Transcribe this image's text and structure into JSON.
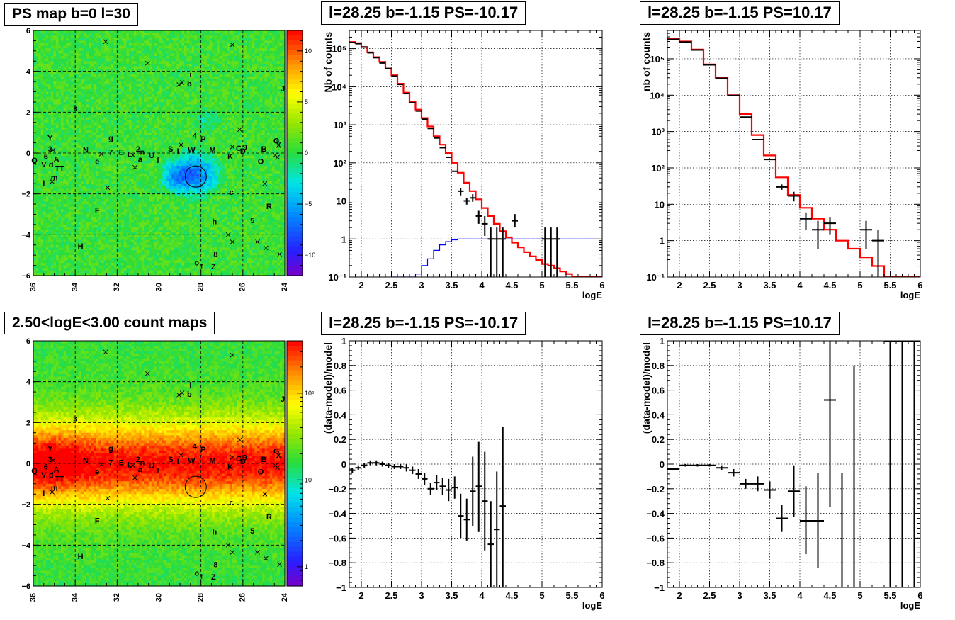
{
  "chart_data": [
    {
      "type": "heatmap",
      "title": "PS map b=0 l=30",
      "x_ticks": [
        "36",
        "34",
        "32",
        "30",
        "28",
        "26",
        "24"
      ],
      "y_ticks": [
        "6",
        "4",
        "2",
        "0",
        "−2",
        "−4",
        "−6"
      ],
      "xlim": [
        36,
        24
      ],
      "ylim": [
        -6,
        6
      ],
      "colorscale": {
        "ticks": [
          "10",
          "5",
          "0",
          "−5",
          "−10"
        ],
        "range": [
          -12,
          12
        ]
      },
      "circle": {
        "l": 28.25,
        "b": -1.15
      },
      "grid": true
    },
    {
      "type": "heatmap",
      "title": "2.50<logE<3.00 count maps",
      "x_ticks": [
        "36",
        "34",
        "32",
        "30",
        "28",
        "26",
        "24"
      ],
      "y_ticks": [
        "6",
        "4",
        "2",
        "0",
        "−2",
        "−4",
        "−6"
      ],
      "xlim": [
        36,
        24
      ],
      "ylim": [
        -6,
        6
      ],
      "colorscale": {
        "ticks": [
          "10²",
          "10",
          "1"
        ],
        "scale": "log",
        "range": [
          0.6,
          400
        ]
      },
      "circle": {
        "l": 28.25,
        "b": -1.15
      },
      "grid": true
    },
    {
      "type": "line",
      "title": "l=28.25 b=-1.15 PS=-10.17",
      "xlabel": "logE",
      "ylabel": "Nb of counts",
      "x_ticks": [
        "2",
        "2.5",
        "3",
        "3.5",
        "4",
        "4.5",
        "5",
        "5.5",
        "6"
      ],
      "xlim": [
        1.8,
        6
      ],
      "ylog": true,
      "y_ticks": [
        "10⁵",
        "10⁴",
        "10³",
        "10²",
        "10",
        "1",
        "10⁻¹"
      ],
      "ylim": [
        0.1,
        300000
      ],
      "grid": true,
      "series": [
        {
          "color": "#ff0000",
          "style": "step",
          "bin_width": 0.1,
          "x": [
            1.8,
            1.9,
            2.0,
            2.1,
            2.2,
            2.3,
            2.4,
            2.5,
            2.6,
            2.7,
            2.8,
            2.9,
            3.0,
            3.1,
            3.2,
            3.3,
            3.4,
            3.5,
            3.6,
            3.7,
            3.8,
            3.9,
            4.0,
            4.1,
            4.2,
            4.3,
            4.4,
            4.5,
            4.6,
            4.7,
            4.8,
            4.9,
            5.0,
            5.1,
            5.2,
            5.3,
            5.4,
            5.5,
            5.6,
            5.7,
            5.8,
            5.9
          ],
          "y": [
            150000,
            140000,
            110000,
            80000,
            60000,
            45000,
            30000,
            20000,
            12000,
            7000,
            4000,
            2500,
            1500,
            900,
            500,
            300,
            180,
            100,
            55,
            30,
            18,
            11,
            6.5,
            4,
            2.5,
            1.6,
            1.1,
            0.8,
            0.6,
            0.45,
            0.35,
            0.28,
            0.22,
            0.2,
            0.17,
            0.14,
            0.12,
            0.1,
            0.1,
            0.1,
            0.1,
            0.1
          ]
        },
        {
          "color": "#0000ff",
          "style": "step",
          "bin_width": 0.1,
          "x": [
            2.5,
            2.6,
            2.7,
            2.8,
            2.9,
            3.0,
            3.1,
            3.2,
            3.3,
            3.4,
            3.5,
            3.6,
            3.7,
            3.8,
            3.9,
            4.0,
            4.2,
            4.4,
            4.6,
            4.8,
            5.0,
            5.2,
            5.4,
            5.6,
            5.8
          ],
          "y": [
            0.1,
            0.1,
            0.1,
            0.1,
            0.12,
            0.2,
            0.3,
            0.5,
            0.7,
            0.85,
            0.95,
            1,
            1,
            1,
            1,
            1,
            1,
            1,
            1,
            1,
            1,
            1,
            1,
            1,
            1
          ]
        },
        {
          "color": "#000000",
          "style": "errorbar",
          "xerr": 0.05,
          "x": [
            1.85,
            1.95,
            2.05,
            2.15,
            2.25,
            2.35,
            2.45,
            2.55,
            2.65,
            2.75,
            2.85,
            2.95,
            3.05,
            3.15,
            3.25,
            3.35,
            3.45,
            3.55,
            3.65,
            3.75,
            3.85,
            3.95,
            4.05,
            4.15,
            4.25,
            4.35,
            4.55,
            5.05,
            5.15,
            5.25
          ],
          "y": [
            145000,
            135000,
            110000,
            78000,
            58000,
            42000,
            30000,
            19000,
            11500,
            6600,
            3800,
            2300,
            1400,
            800,
            450,
            250,
            140,
            60,
            18,
            10,
            12,
            4,
            2.5,
            1,
            1,
            1,
            3,
            1,
            1,
            1
          ],
          "ylo": [
            145000,
            135000,
            110000,
            78000,
            58000,
            42000,
            30000,
            19000,
            11500,
            6600,
            3800,
            2300,
            1400,
            800,
            450,
            250,
            140,
            60,
            14,
            8,
            9.5,
            2.5,
            1.2,
            0.1,
            0.1,
            0.1,
            2,
            0.1,
            0.1,
            0.1
          ],
          "yhi": [
            145000,
            135000,
            110000,
            78000,
            58000,
            42000,
            30000,
            19000,
            11500,
            6600,
            3800,
            2300,
            1400,
            800,
            450,
            250,
            140,
            60,
            22,
            12,
            15,
            5.5,
            4,
            2,
            2,
            2,
            4.5,
            2,
            2,
            2
          ]
        }
      ]
    },
    {
      "type": "line",
      "title": "l=28.25 b=-1.15 PS=10.17",
      "xlabel": "logE",
      "ylabel": "nb of counts",
      "x_ticks": [
        "2",
        "2.5",
        "3",
        "3.5",
        "4",
        "4.5",
        "5",
        "5.5",
        "6"
      ],
      "xlim": [
        1.8,
        6
      ],
      "ylog": true,
      "y_ticks": [
        "10⁵",
        "10⁴",
        "10³",
        "10²",
        "10",
        "1",
        "10⁻¹"
      ],
      "ylim": [
        0.1,
        600000
      ],
      "grid": true,
      "series": [
        {
          "color": "#ff0000",
          "style": "step",
          "bin_width": 0.2,
          "x": [
            1.8,
            2.0,
            2.2,
            2.4,
            2.6,
            2.8,
            3.0,
            3.2,
            3.4,
            3.6,
            3.8,
            4.0,
            4.2,
            4.4,
            4.6,
            4.8,
            5.0,
            5.2,
            5.4,
            5.6,
            5.8
          ],
          "y": [
            350000,
            300000,
            180000,
            70000,
            30000,
            10000,
            3000,
            800,
            220,
            55,
            18,
            8,
            4,
            2,
            1,
            0.6,
            0.35,
            0.2,
            0.1,
            0.1,
            0.1
          ]
        },
        {
          "color": "#000000",
          "style": "errorbar",
          "xerr": 0.1,
          "x": [
            1.9,
            2.1,
            2.3,
            2.5,
            2.7,
            2.9,
            3.1,
            3.3,
            3.5,
            3.7,
            3.9,
            4.1,
            4.3,
            4.5,
            5.1,
            5.3
          ],
          "y": [
            340000,
            290000,
            175000,
            68000,
            29000,
            9800,
            2500,
            600,
            170,
            30,
            17,
            4,
            2,
            3,
            2,
            1
          ],
          "ylo": [
            340000,
            290000,
            175000,
            68000,
            29000,
            9800,
            2500,
            600,
            170,
            25,
            12,
            2,
            0.6,
            1.5,
            0.6,
            0.1
          ],
          "yhi": [
            340000,
            290000,
            175000,
            68000,
            29000,
            9800,
            2500,
            600,
            170,
            35,
            22,
            6,
            3.5,
            4.5,
            3.5,
            2
          ]
        }
      ]
    },
    {
      "type": "scatter",
      "title": "l=28.25 b=-1.15 PS=-10.17",
      "xlabel": "logE",
      "ylabel": "(data-model)/model",
      "x_ticks": [
        "2",
        "2.5",
        "3",
        "3.5",
        "4",
        "4.5",
        "5",
        "5.5",
        "6"
      ],
      "xlim": [
        1.8,
        6
      ],
      "y_ticks": [
        "1",
        "0.8",
        "0.6",
        "0.4",
        "0.2",
        "0",
        "−0.2",
        "−0.4",
        "−0.6",
        "−0.8",
        "−1"
      ],
      "ylim": [
        -1,
        1
      ],
      "grid": true,
      "series": [
        {
          "color": "#000000",
          "style": "errorbar",
          "xerr": 0.05,
          "x": [
            1.85,
            1.95,
            2.05,
            2.15,
            2.25,
            2.35,
            2.45,
            2.55,
            2.65,
            2.75,
            2.85,
            2.95,
            3.05,
            3.15,
            3.25,
            3.35,
            3.45,
            3.55,
            3.65,
            3.75,
            3.85,
            3.95,
            4.05,
            4.15,
            4.25,
            4.35
          ],
          "y": [
            -0.05,
            -0.03,
            -0.01,
            0.01,
            0.01,
            0.0,
            -0.01,
            -0.02,
            -0.02,
            -0.03,
            -0.05,
            -0.08,
            -0.12,
            -0.2,
            -0.15,
            -0.18,
            -0.21,
            -0.19,
            -0.42,
            -0.45,
            -0.22,
            -0.18,
            -0.3,
            -0.65,
            -0.53,
            -0.34
          ],
          "ylo": [
            -0.07,
            -0.05,
            -0.03,
            -0.01,
            -0.01,
            -0.02,
            -0.03,
            -0.04,
            -0.04,
            -0.06,
            -0.08,
            -0.12,
            -0.17,
            -0.25,
            -0.21,
            -0.25,
            -0.3,
            -0.28,
            -0.6,
            -0.62,
            -0.5,
            -0.55,
            -0.7,
            -1.0,
            -1.0,
            -1.0
          ],
          "yhi": [
            -0.03,
            -0.01,
            0.01,
            0.03,
            0.03,
            0.02,
            0.01,
            0.0,
            0.0,
            0.0,
            -0.02,
            -0.04,
            -0.07,
            -0.15,
            -0.09,
            -0.11,
            -0.12,
            -0.1,
            -0.24,
            -0.28,
            0.06,
            0.18,
            0.1,
            -0.3,
            -0.06,
            0.3
          ]
        }
      ]
    },
    {
      "type": "scatter",
      "title": "l=28.25 b=-1.15 PS=10.17",
      "xlabel": "logE",
      "ylabel": "(data-model)/model",
      "x_ticks": [
        "2",
        "2.5",
        "3",
        "3.5",
        "4",
        "4.5",
        "5",
        "5.5",
        "6"
      ],
      "xlim": [
        1.8,
        6
      ],
      "y_ticks": [
        "1",
        "0.8",
        "0.6",
        "0.4",
        "0.2",
        "0",
        "−0.2",
        "−0.4",
        "−0.6",
        "−0.8",
        "−1"
      ],
      "ylim": [
        -1,
        1
      ],
      "grid": true,
      "series": [
        {
          "color": "#000000",
          "style": "errorbar",
          "xerr": 0.1,
          "x": [
            1.9,
            2.1,
            2.3,
            2.5,
            2.7,
            2.9,
            3.1,
            3.3,
            3.5,
            3.7,
            3.9,
            4.1,
            4.3,
            4.5,
            4.7,
            4.9,
            5.5,
            5.7,
            5.9
          ],
          "y": [
            -0.04,
            -0.01,
            -0.01,
            -0.01,
            -0.03,
            -0.07,
            -0.16,
            -0.16,
            -0.21,
            -0.44,
            -0.22,
            -0.46,
            -0.46,
            0.52,
            -1.0,
            -1.0,
            1.0,
            1.0,
            1.0
          ],
          "ylo": [
            -0.05,
            -0.02,
            -0.02,
            -0.02,
            -0.05,
            -0.1,
            -0.2,
            -0.22,
            -0.28,
            -0.55,
            -0.43,
            -0.73,
            -0.84,
            -0.35,
            -1.0,
            -1.0,
            -1.0,
            -1.0,
            -1.0
          ],
          "yhi": [
            -0.03,
            0.0,
            0.0,
            0.0,
            -0.01,
            -0.04,
            -0.12,
            -0.1,
            -0.14,
            -0.33,
            -0.01,
            -0.18,
            -0.07,
            1.0,
            -0.07,
            0.8,
            1.0,
            1.0,
            1.0
          ]
        }
      ]
    }
  ],
  "source_labels": [
    {
      "t": "Y",
      "l": 35.2,
      "b": 0.75
    },
    {
      "t": "3",
      "l": 35.2,
      "b": 0.2
    },
    {
      "t": "6",
      "l": 35.4,
      "b": -0.15
    },
    {
      "t": "Q",
      "l": 35.95,
      "b": -0.35
    },
    {
      "t": "V",
      "l": 35.5,
      "b": -0.55
    },
    {
      "t": "A",
      "l": 34.9,
      "b": -0.3
    },
    {
      "t": "d",
      "l": 35.15,
      "b": -0.55
    },
    {
      "t": "TT",
      "l": 34.75,
      "b": -0.75
    },
    {
      "t": "m",
      "l": 35.0,
      "b": -1.2
    },
    {
      "t": "I",
      "l": 35.5,
      "b": -1.45
    },
    {
      "t": "k",
      "l": 34.0,
      "b": 2.2
    },
    {
      "t": "N",
      "l": 33.5,
      "b": 0.15
    },
    {
      "t": "e",
      "l": 32.95,
      "b": -0.4
    },
    {
      "t": "g",
      "l": 32.3,
      "b": 0.75
    },
    {
      "t": "7",
      "l": 32.3,
      "b": 0.05
    },
    {
      "t": "E",
      "l": 31.8,
      "b": 0.05
    },
    {
      "t": "L",
      "l": 31.4,
      "b": -0.05
    },
    {
      "t": "2",
      "l": 31.0,
      "b": 0.2
    },
    {
      "t": "n",
      "l": 30.8,
      "b": 0.05
    },
    {
      "t": "a",
      "l": 30.9,
      "b": -0.3
    },
    {
      "t": "U",
      "l": 30.35,
      "b": -0.1
    },
    {
      "t": "f",
      "l": 30.05,
      "b": -0.35
    },
    {
      "t": "S",
      "l": 29.45,
      "b": 0.2
    },
    {
      "t": "I",
      "l": 29.1,
      "b": 0.1
    },
    {
      "t": "W",
      "l": 28.45,
      "b": 0.15
    },
    {
      "t": "4",
      "l": 28.3,
      "b": 0.85
    },
    {
      "t": "P",
      "l": 27.9,
      "b": 0.7
    },
    {
      "t": "M",
      "l": 27.45,
      "b": 0.15
    },
    {
      "t": "K",
      "l": 26.6,
      "b": -0.15
    },
    {
      "t": "C",
      "l": 26.2,
      "b": 0.25
    },
    {
      "t": "D",
      "l": 26.0,
      "b": 0.1
    },
    {
      "t": "9",
      "l": 25.9,
      "b": 0.3
    },
    {
      "t": "B",
      "l": 25.0,
      "b": 0.2
    },
    {
      "t": "O",
      "l": 25.15,
      "b": -0.4
    },
    {
      "t": "G",
      "l": 24.4,
      "b": 0.6
    },
    {
      "t": "X",
      "l": 24.3,
      "b": 0.4
    },
    {
      "t": "J",
      "l": 24.1,
      "b": 3.15
    },
    {
      "t": "i",
      "l": 28.5,
      "b": 3.85
    },
    {
      "t": "b",
      "l": 28.55,
      "b": 3.4
    },
    {
      "t": "c",
      "l": 26.55,
      "b": -1.9
    },
    {
      "t": "R",
      "l": 24.75,
      "b": -2.6
    },
    {
      "t": "F",
      "l": 32.95,
      "b": -2.8
    },
    {
      "t": "h",
      "l": 27.35,
      "b": -3.35
    },
    {
      "t": "5",
      "l": 25.55,
      "b": -3.3
    },
    {
      "t": "H",
      "l": 33.75,
      "b": -4.55
    },
    {
      "t": "8",
      "l": 27.3,
      "b": -4.95
    },
    {
      "t": "o",
      "l": 28.2,
      "b": -5.35
    },
    {
      "t": "Z",
      "l": 27.4,
      "b": -5.55
    },
    {
      "t": "r",
      "l": 27.95,
      "b": -5.5
    }
  ],
  "source_crosses": [
    [
      32.55,
      5.45
    ],
    [
      26.5,
      5.3
    ],
    [
      30.55,
      4.4
    ],
    [
      29.05,
      3.35
    ],
    [
      28.9,
      3.45
    ],
    [
      26.15,
      1.15
    ],
    [
      26.5,
      0.3
    ],
    [
      35.05,
      0.15
    ],
    [
      32.75,
      -0.05
    ],
    [
      31.25,
      -0.1
    ],
    [
      24.45,
      -0.1
    ],
    [
      24.35,
      -0.2
    ],
    [
      31.15,
      -0.7
    ],
    [
      35.1,
      -1.4
    ],
    [
      32.45,
      -1.7
    ],
    [
      24.95,
      -1.5
    ],
    [
      26.7,
      -4.0
    ],
    [
      26.5,
      -4.35
    ],
    [
      25.3,
      -4.35
    ],
    [
      24.9,
      -4.65
    ],
    [
      24.25,
      -4.95
    ],
    [
      28.95,
      0.4
    ]
  ]
}
